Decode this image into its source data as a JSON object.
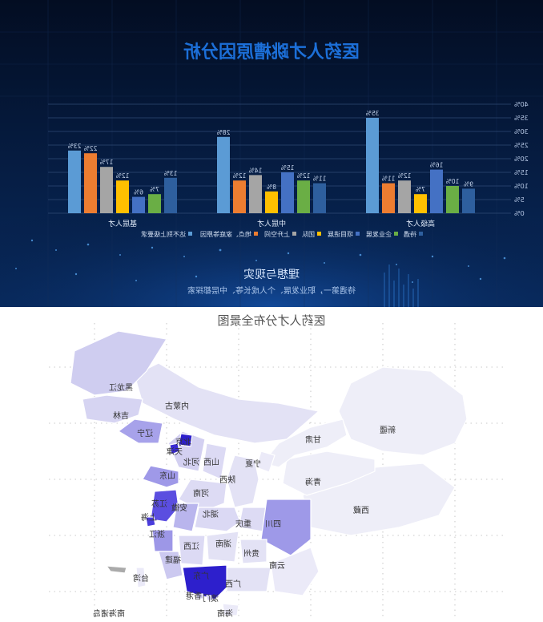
{
  "chart_data": {
    "type": "bar",
    "title": "医药人才跳槽原因分析",
    "ylim": [
      0,
      40
    ],
    "yticks": [
      "0%",
      "5%",
      "10%",
      "15%",
      "20%",
      "25%",
      "30%",
      "35%",
      "40%"
    ],
    "categories": [
      "高级人才",
      "中层人才",
      "基层人才"
    ],
    "series": [
      {
        "name": "待遇",
        "color": "#2e5f9e",
        "values": [
          9,
          11,
          13
        ]
      },
      {
        "name": "企业发展",
        "color": "#6aae45",
        "values": [
          10,
          12,
          7
        ]
      },
      {
        "name": "项目进展",
        "color": "#4471c4",
        "values": [
          16,
          15,
          6
        ]
      },
      {
        "name": "团队",
        "color": "#ffc000",
        "values": [
          7,
          8,
          12
        ]
      },
      {
        "name": "上升空间",
        "color": "#a5a5a5",
        "values": [
          12,
          14,
          17
        ]
      },
      {
        "name": "地点、家庭等原因",
        "color": "#ed7d31",
        "values": [
          11,
          12,
          22
        ]
      },
      {
        "name": "达不到上级要求",
        "color": "#5b9bd5",
        "values": [
          35,
          28,
          23
        ]
      }
    ],
    "labels": [
      [
        "9%",
        "11%",
        "13%"
      ],
      [
        "10%",
        "12%",
        "7%"
      ],
      [
        "16%",
        "15%",
        "6%"
      ],
      [
        "7%",
        "8%",
        "12%"
      ],
      [
        "12%",
        "14%",
        "17%"
      ],
      [
        "11%",
        "12%",
        "22%"
      ],
      [
        "35%",
        "28%",
        "23%"
      ]
    ],
    "legend_position": "bottom"
  },
  "top_banner": {
    "subtitle": "理想与现实",
    "caption": "待遇第一，职业发展、个人成长等、中层都探索"
  },
  "map": {
    "title": "医药人才分布全景图",
    "labels": [
      "黑龙江",
      "吉林",
      "内蒙古",
      "辽宁",
      "北京",
      "天津",
      "河北",
      "山西",
      "山东",
      "宁夏",
      "甘肃",
      "新疆",
      "陕西",
      "青海",
      "河南",
      "江苏",
      "安徽",
      "上海",
      "湖北",
      "浙江",
      "重庆",
      "四川",
      "西藏",
      "湖南",
      "江西",
      "福建",
      "贵州",
      "云南",
      "台湾",
      "广西",
      "广东",
      "香港",
      "澳门",
      "海南",
      "南海诸岛"
    ]
  },
  "colors": {
    "bg_dark": "#03102a",
    "title_blue": "#1c6fd8",
    "map_light": "#e8e7f6",
    "map_mid": "#c4c1ee",
    "map_strong": "#8f89e4",
    "map_deep": "#3524d6"
  }
}
